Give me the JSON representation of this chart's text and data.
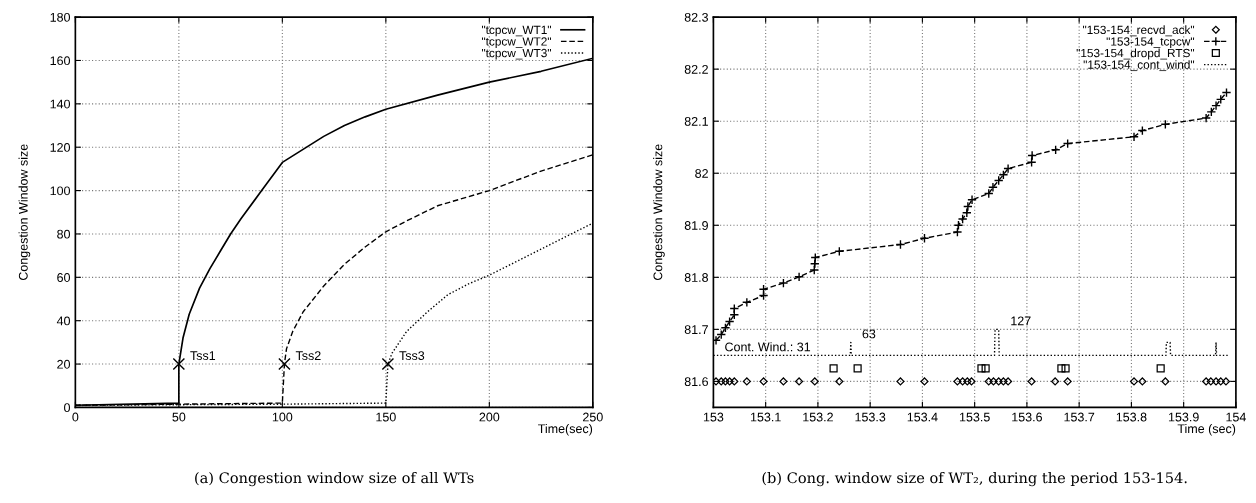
{
  "chart_data": [
    {
      "type": "line",
      "title": "(a) Congestion window size of all WTs",
      "xlabel": "Time(sec)",
      "ylabel": "Congestion Window size",
      "xlim": [
        0,
        250
      ],
      "xticks": [
        0,
        50,
        100,
        150,
        200,
        250
      ],
      "ylim": [
        0,
        180
      ],
      "yticks": [
        0,
        20,
        40,
        60,
        80,
        100,
        120,
        140,
        160,
        180
      ],
      "grid": true,
      "legend": "top right",
      "series": [
        {
          "name": "\"tcpcw_WT1\"",
          "color": "#000000",
          "line_style": "solid",
          "x": [
            0,
            50,
            50,
            52,
            55,
            60,
            65,
            70,
            75,
            80,
            90,
            100,
            110,
            120,
            130,
            140,
            150,
            175,
            200,
            225,
            250
          ],
          "values": [
            1,
            2,
            20,
            32,
            43,
            55,
            64,
            72,
            80,
            87,
            100,
            113,
            119,
            125,
            130,
            134,
            137.5,
            144,
            150,
            155,
            161
          ]
        },
        {
          "name": "\"tcpcw_WT2\"",
          "color": "#000000",
          "line_style": "dashed",
          "x": [
            0,
            50,
            100,
            101,
            102,
            105,
            110,
            120,
            130,
            140,
            150,
            160,
            175,
            200,
            225,
            250
          ],
          "values": [
            1,
            1.5,
            2,
            20,
            27,
            35,
            44,
            56,
            66,
            74,
            81,
            86,
            93,
            100,
            109,
            116.5
          ]
        },
        {
          "name": "\"tcpcw_WT3\"",
          "color": "#000000",
          "line_style": "dotted",
          "x": [
            0,
            100,
            150,
            151,
            153,
            160,
            170,
            180,
            190,
            200,
            225,
            250
          ],
          "values": [
            1,
            1.5,
            2,
            20,
            25,
            35,
            44,
            52,
            57,
            61,
            73,
            85
          ]
        }
      ],
      "annotations": [
        {
          "text": "Tss1",
          "x": 50,
          "y": 20
        },
        {
          "text": "Tss2",
          "x": 101,
          "y": 20
        },
        {
          "text": "Tss3",
          "x": 151,
          "y": 20
        }
      ]
    },
    {
      "type": "line",
      "title": "(b) Cong. window size of WT₂, during the period 153-154.",
      "xlabel": "Time (sec)",
      "ylabel": "Congestion Window size",
      "xlim": [
        153,
        154
      ],
      "xticks": [
        153,
        153.1,
        153.2,
        153.3,
        153.4,
        153.5,
        153.6,
        153.7,
        153.8,
        153.9,
        154
      ],
      "ylim": [
        81.55,
        82.3
      ],
      "yticks": [
        81.6,
        81.7,
        81.8,
        81.9,
        82,
        82.1,
        82.2,
        82.3
      ],
      "grid": true,
      "legend": "top right",
      "series": [
        {
          "name": "\"153-154_recvd_ack\"",
          "type": "scatter",
          "color": "#000000",
          "marker": "diamond",
          "x": [
            153.005,
            153.015,
            153.023,
            153.031,
            153.04,
            153.064,
            153.096,
            153.134,
            153.164,
            153.194,
            153.241,
            153.358,
            153.404,
            153.467,
            153.477,
            153.486,
            153.494,
            153.527,
            153.536,
            153.546,
            153.555,
            153.564,
            153.609,
            153.654,
            153.678,
            153.805,
            153.821,
            153.865,
            153.943,
            153.952,
            153.962,
            153.971,
            153.981
          ],
          "values": [
            81.6,
            81.6,
            81.6,
            81.6,
            81.6,
            81.6,
            81.6,
            81.6,
            81.6,
            81.6,
            81.6,
            81.6,
            81.6,
            81.6,
            81.6,
            81.6,
            81.6,
            81.6,
            81.6,
            81.6,
            81.6,
            81.6,
            81.6,
            81.6,
            81.6,
            81.6,
            81.6,
            81.6,
            81.6,
            81.6,
            81.6,
            81.6,
            81.6
          ]
        },
        {
          "name": "\"153-154_tcpcw\"",
          "type": "line",
          "color": "#000000",
          "marker": "cross",
          "line_style": "dashed",
          "x": [
            153.005,
            153.015,
            153.023,
            153.031,
            153.04,
            153.04,
            153.064,
            153.096,
            153.096,
            153.134,
            153.164,
            153.193,
            153.194,
            153.195,
            153.241,
            153.358,
            153.404,
            153.467,
            153.469,
            153.477,
            153.485,
            153.487,
            153.495,
            153.527,
            153.535,
            153.546,
            153.555,
            153.564,
            153.609,
            153.61,
            153.655,
            153.678,
            153.805,
            153.821,
            153.865,
            153.943,
            153.953,
            153.962,
            153.971,
            153.982
          ],
          "values": [
            81.679,
            81.69,
            81.703,
            81.715,
            81.728,
            81.74,
            81.752,
            81.765,
            81.777,
            81.789,
            81.801,
            81.814,
            81.826,
            81.838,
            81.85,
            81.863,
            81.875,
            81.887,
            81.9,
            81.912,
            81.924,
            81.936,
            81.949,
            81.961,
            81.973,
            81.986,
            81.997,
            82.009,
            82.021,
            82.034,
            82.045,
            82.057,
            82.07,
            82.082,
            82.094,
            82.106,
            82.118,
            82.13,
            82.142,
            82.155
          ]
        },
        {
          "name": "\"153-154_dropd_RTS\"",
          "type": "scatter",
          "color": "#000000",
          "marker": "square",
          "x": [
            153.23,
            153.276,
            153.513,
            153.521,
            153.666,
            153.674,
            153.856
          ],
          "values": [
            81.625,
            81.625,
            81.625,
            81.625,
            81.625,
            81.625,
            81.625
          ]
        },
        {
          "name": "\"153-154_cont_wind\"",
          "type": "line",
          "color": "#000000",
          "line_style": "dotted",
          "x": [
            153.0,
            153.262,
            153.263,
            153.264,
            153.538,
            153.539,
            153.546,
            153.547,
            153.866,
            153.867,
            153.874,
            153.875,
            153.961,
            153.962,
            153.963,
            153.988
          ],
          "values": [
            81.65,
            81.65,
            81.675,
            81.65,
            81.65,
            81.7,
            81.7,
            81.65,
            81.65,
            81.675,
            81.675,
            81.65,
            81.65,
            81.675,
            81.65,
            81.65
          ]
        }
      ],
      "annotations": [
        {
          "text": "Cont. Wind.: 31",
          "x": 153.0,
          "y": 81.65
        },
        {
          "text": "63",
          "x": 153.263,
          "y": 81.675
        },
        {
          "text": "127",
          "x": 153.547,
          "y": 81.7
        }
      ]
    }
  ]
}
